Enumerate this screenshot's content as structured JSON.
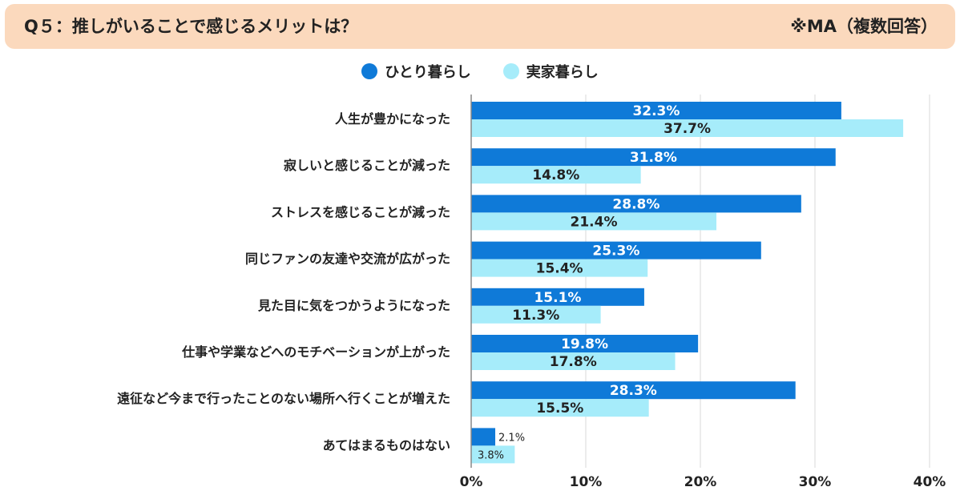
{
  "header": {
    "title": "Q５：推しがいることで感じるメリットは？",
    "note": "※MA（複数回答）"
  },
  "colors": {
    "header_bg": "#fbd9bd",
    "series_1": "#0f7ad8",
    "series_2": "#a6ecfa",
    "grid": "#d9d9d9"
  },
  "chart_data": {
    "type": "bar",
    "orientation": "horizontal",
    "categories": [
      "人生が豊かになった",
      "寂しいと感じることが減った",
      "ストレスを感じることが減った",
      "同じファンの友達や交流が広がった",
      "見た目に気をつかうようになった",
      "仕事や学業などへのモチベーションが上がった",
      "遠征など今まで行ったことのない場所へ行くことが増えた",
      "あてはまるものはない"
    ],
    "series": [
      {
        "name": "ひとり暮らし",
        "values": [
          32.3,
          31.8,
          28.8,
          25.3,
          15.1,
          19.8,
          28.3,
          2.1
        ],
        "labels": [
          "32.3%",
          "31.8%",
          "28.8%",
          "25.3%",
          "15.1%",
          "19.8%",
          "28.3%",
          "2.1%"
        ]
      },
      {
        "name": "実家暮らし",
        "values": [
          37.7,
          14.8,
          21.4,
          15.4,
          11.3,
          17.8,
          15.5,
          3.8
        ],
        "labels": [
          "37.7%",
          "14.8%",
          "21.4%",
          "15.4%",
          "11.3%",
          "17.8%",
          "15.5%",
          "3.8%"
        ]
      }
    ],
    "xlim": [
      0,
      40
    ],
    "ticks": [
      0,
      10,
      20,
      30,
      40
    ],
    "tick_labels": [
      "0%",
      "10%",
      "20%",
      "30%",
      "40%"
    ],
    "grid": true,
    "legend_position": "top-center"
  }
}
